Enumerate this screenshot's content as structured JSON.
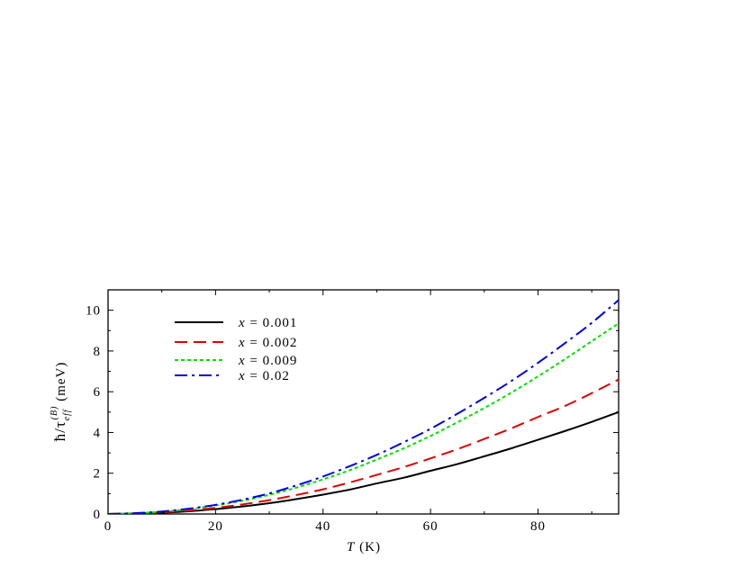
{
  "chart_data": {
    "type": "line",
    "xlabel_var": "T",
    "xlabel_unit": " (K)",
    "ylabel_main": "ħ/τ",
    "ylabel_sub": "eff",
    "ylabel_sup": "(B)",
    "ylabel_unit": " (meV)",
    "xlim": [
      0,
      95
    ],
    "ylim": [
      0,
      11
    ],
    "xticks": [
      0,
      20,
      40,
      60,
      80
    ],
    "yticks": [
      0,
      2,
      4,
      6,
      8,
      10
    ],
    "grid": false,
    "legend_position": "top-left",
    "x": [
      0,
      5,
      10,
      15,
      20,
      25,
      30,
      35,
      40,
      45,
      50,
      55,
      60,
      65,
      70,
      75,
      80,
      85,
      90,
      95
    ],
    "series": [
      {
        "legend_var": "x",
        "legend_value": " = 0.001",
        "color": "#000000",
        "dash": "",
        "values": [
          0,
          0.02,
          0.06,
          0.13,
          0.24,
          0.37,
          0.53,
          0.73,
          0.95,
          1.2,
          1.5,
          1.78,
          2.12,
          2.45,
          2.83,
          3.22,
          3.64,
          4.07,
          4.52,
          5.0
        ]
      },
      {
        "legend_var": "x",
        "legend_value": " = 0.002",
        "color": "#e00000",
        "dash": "14,7",
        "values": [
          0,
          0.03,
          0.08,
          0.17,
          0.3,
          0.47,
          0.68,
          0.93,
          1.21,
          1.55,
          1.92,
          2.3,
          2.73,
          3.18,
          3.68,
          4.2,
          4.76,
          5.3,
          5.93,
          6.6
        ]
      },
      {
        "legend_var": "x",
        "legend_value": " = 0.009",
        "color": "#00e000",
        "dash": "4,3",
        "values": [
          0,
          0.04,
          0.11,
          0.24,
          0.42,
          0.65,
          0.94,
          1.29,
          1.7,
          2.15,
          2.67,
          3.22,
          3.83,
          4.5,
          5.2,
          5.95,
          6.75,
          7.6,
          8.48,
          9.35
        ]
      },
      {
        "legend_var": "x",
        "legend_value": " = 0.02",
        "color": "#0000e0",
        "dash": "14,5,3,5",
        "values": [
          0,
          0.04,
          0.12,
          0.26,
          0.45,
          0.7,
          1.01,
          1.4,
          1.84,
          2.35,
          2.9,
          3.52,
          4.18,
          4.92,
          5.7,
          6.52,
          7.42,
          8.38,
          9.38,
          10.5
        ]
      }
    ]
  }
}
